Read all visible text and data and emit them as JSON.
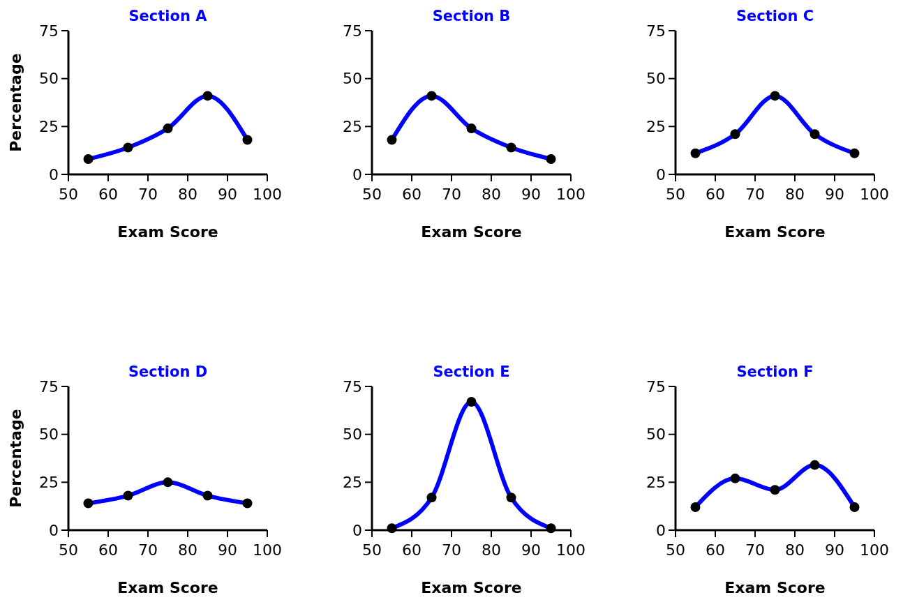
{
  "chart_data": [
    {
      "type": "line",
      "title": "Section A",
      "xlabel": "Exam Score",
      "ylabel": "Percentage",
      "x": [
        55,
        65,
        75,
        85,
        95
      ],
      "series": [
        {
          "color": "#0000ff",
          "values": [
            8,
            14,
            24,
            41,
            18
          ]
        }
      ],
      "xlim": [
        50,
        100
      ],
      "xticks": [
        50,
        60,
        70,
        80,
        90,
        100
      ],
      "ylim": [
        0,
        75
      ],
      "yticks": [
        0,
        25,
        50,
        75
      ],
      "marker": "circle"
    },
    {
      "type": "line",
      "title": "Section B",
      "xlabel": "Exam Score",
      "x": [
        55,
        65,
        75,
        85,
        95
      ],
      "series": [
        {
          "color": "#0000ff",
          "values": [
            18,
            41,
            24,
            14,
            8
          ]
        }
      ],
      "xlim": [
        50,
        100
      ],
      "xticks": [
        50,
        60,
        70,
        80,
        90,
        100
      ],
      "ylim": [
        0,
        75
      ],
      "yticks": [
        0,
        25,
        50,
        75
      ],
      "marker": "circle"
    },
    {
      "type": "line",
      "title": "Section C",
      "xlabel": "Exam Score",
      "x": [
        55,
        65,
        75,
        85,
        95
      ],
      "series": [
        {
          "color": "#0000ff",
          "values": [
            11,
            21,
            41,
            21,
            11
          ]
        }
      ],
      "xlim": [
        50,
        100
      ],
      "xticks": [
        50,
        60,
        70,
        80,
        90,
        100
      ],
      "ylim": [
        0,
        75
      ],
      "yticks": [
        0,
        25,
        50,
        75
      ],
      "marker": "circle"
    },
    {
      "type": "line",
      "title": "Section D",
      "xlabel": "Exam Score",
      "ylabel": "Percentage",
      "x": [
        55,
        65,
        75,
        85,
        95
      ],
      "series": [
        {
          "color": "#0000ff",
          "values": [
            14,
            18,
            25,
            18,
            14
          ]
        }
      ],
      "xlim": [
        50,
        100
      ],
      "xticks": [
        50,
        60,
        70,
        80,
        90,
        100
      ],
      "ylim": [
        0,
        75
      ],
      "yticks": [
        0,
        25,
        50,
        75
      ],
      "marker": "circle"
    },
    {
      "type": "line",
      "title": "Section E",
      "xlabel": "Exam Score",
      "x": [
        55,
        65,
        75,
        85,
        95
      ],
      "series": [
        {
          "color": "#0000ff",
          "values": [
            1,
            17,
            67,
            17,
            1
          ]
        }
      ],
      "xlim": [
        50,
        100
      ],
      "xticks": [
        50,
        60,
        70,
        80,
        90,
        100
      ],
      "ylim": [
        0,
        75
      ],
      "yticks": [
        0,
        25,
        50,
        75
      ],
      "marker": "circle"
    },
    {
      "type": "line",
      "title": "Section F",
      "xlabel": "Exam Score",
      "x": [
        55,
        65,
        75,
        85,
        95
      ],
      "series": [
        {
          "color": "#0000ff",
          "values": [
            12,
            27,
            21,
            34,
            12
          ]
        }
      ],
      "xlim": [
        50,
        100
      ],
      "xticks": [
        50,
        60,
        70,
        80,
        90,
        100
      ],
      "ylim": [
        0,
        75
      ],
      "yticks": [
        0,
        25,
        50,
        75
      ],
      "marker": "circle"
    }
  ]
}
